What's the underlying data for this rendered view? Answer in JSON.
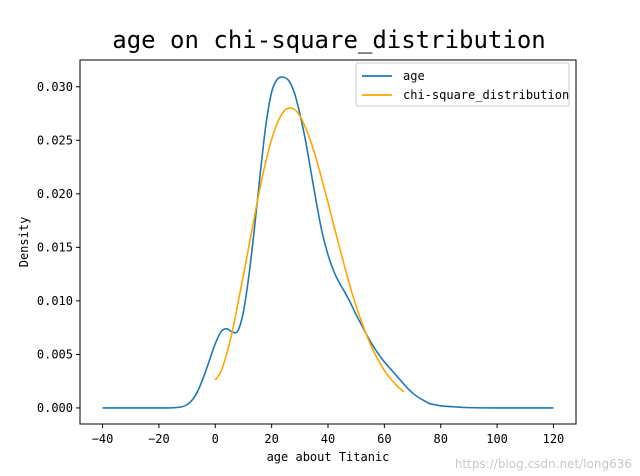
{
  "watermark": "https://blog.csdn.net/long636",
  "chart_data": {
    "type": "line",
    "title": "age  on  chi-square_distribution",
    "xlabel": "age  about  Titanic",
    "ylabel": "Density",
    "xlim": [
      -48,
      128
    ],
    "ylim": [
      -0.0015,
      0.0325
    ],
    "xticks": [
      -40,
      -20,
      0,
      20,
      40,
      60,
      80,
      100,
      120
    ],
    "yticks": [
      0.0,
      0.005,
      0.01,
      0.015,
      0.02,
      0.025,
      0.03
    ],
    "xtick_labels": [
      "−40",
      "−20",
      "0",
      "20",
      "40",
      "60",
      "80",
      "100",
      "120"
    ],
    "ytick_labels": [
      "0.000",
      "0.005",
      "0.010",
      "0.015",
      "0.020",
      "0.025",
      "0.030"
    ],
    "grid": false,
    "legend_position": "top-right",
    "series": [
      {
        "name": "age",
        "color": "#1f77b4",
        "x": [
          -40,
          -20,
          -15,
          -12,
          -10,
          -8,
          -6,
          -4,
          -2,
          0,
          2,
          4,
          6,
          8,
          10,
          12,
          14,
          16,
          18,
          20,
          22,
          24,
          26,
          28,
          30,
          32,
          34,
          36,
          38,
          40,
          42,
          44,
          46,
          48,
          50,
          52,
          54,
          56,
          58,
          60,
          62,
          64,
          66,
          68,
          70,
          72,
          74,
          76,
          78,
          80,
          85,
          90,
          100,
          120
        ],
        "values": [
          0.0,
          0.0,
          2e-05,
          0.0001,
          0.0003,
          0.0008,
          0.0017,
          0.003,
          0.0045,
          0.006,
          0.0071,
          0.0074,
          0.0071,
          0.0072,
          0.009,
          0.0125,
          0.017,
          0.022,
          0.0265,
          0.0295,
          0.0307,
          0.0309,
          0.0306,
          0.0295,
          0.0275,
          0.025,
          0.022,
          0.019,
          0.0163,
          0.0143,
          0.0128,
          0.0117,
          0.0108,
          0.0098,
          0.0087,
          0.0077,
          0.0067,
          0.0058,
          0.005,
          0.0043,
          0.0037,
          0.0031,
          0.0025,
          0.0019,
          0.0014,
          0.001,
          0.0007,
          0.0004,
          0.0003,
          0.0002,
          0.0001,
          3e-05,
          0.0,
          0.0
        ]
      },
      {
        "name": "chi-square_distribution",
        "color": "#ffa500",
        "x": [
          0,
          2,
          4,
          6,
          8,
          10,
          12,
          14,
          16,
          18,
          20,
          22,
          24,
          26,
          28,
          30,
          32,
          34,
          36,
          38,
          40,
          42,
          44,
          46,
          48,
          50,
          52,
          54,
          56,
          58,
          60,
          62,
          64,
          66,
          67
        ],
        "values": [
          0.0026,
          0.0034,
          0.005,
          0.0071,
          0.0097,
          0.0124,
          0.0152,
          0.018,
          0.0207,
          0.0231,
          0.0251,
          0.0266,
          0.0276,
          0.028,
          0.0279,
          0.0273,
          0.0262,
          0.0248,
          0.0231,
          0.0212,
          0.0192,
          0.0171,
          0.0151,
          0.0131,
          0.0112,
          0.0095,
          0.008,
          0.0066,
          0.0054,
          0.0044,
          0.0035,
          0.0028,
          0.0022,
          0.0017,
          0.0015
        ]
      }
    ]
  }
}
